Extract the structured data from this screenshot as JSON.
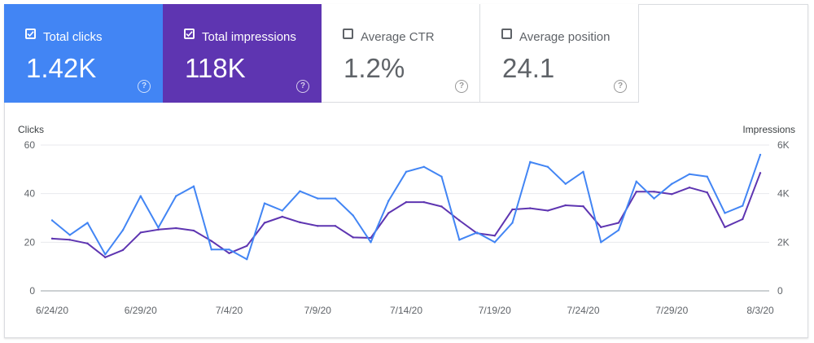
{
  "metrics": [
    {
      "label": "Total clicks",
      "value": "1.42K",
      "checked": true,
      "color": "#4285f4",
      "icon": "help-icon"
    },
    {
      "label": "Total impressions",
      "value": "118K",
      "checked": true,
      "color": "#5e35b1",
      "icon": "help-icon"
    },
    {
      "label": "Average CTR",
      "value": "1.2%",
      "checked": false,
      "icon": "help-icon"
    },
    {
      "label": "Average position",
      "value": "24.1",
      "checked": false,
      "icon": "help-icon"
    }
  ],
  "help_glyph": "?",
  "chart_data": {
    "type": "line",
    "categories": [
      "6/24/20",
      "6/25/20",
      "6/26/20",
      "6/27/20",
      "6/28/20",
      "6/29/20",
      "6/30/20",
      "7/1/20",
      "7/2/20",
      "7/3/20",
      "7/4/20",
      "7/5/20",
      "7/6/20",
      "7/7/20",
      "7/8/20",
      "7/9/20",
      "7/10/20",
      "7/11/20",
      "7/12/20",
      "7/13/20",
      "7/14/20",
      "7/15/20",
      "7/16/20",
      "7/17/20",
      "7/18/20",
      "7/19/20",
      "7/20/20",
      "7/21/20",
      "7/22/20",
      "7/23/20",
      "7/24/20",
      "7/25/20",
      "7/26/20",
      "7/27/20",
      "7/28/20",
      "7/29/20",
      "7/30/20",
      "7/31/20",
      "8/1/20",
      "8/2/20",
      "8/3/20"
    ],
    "x_tick_labels": [
      "6/24/20",
      "6/29/20",
      "7/4/20",
      "7/9/20",
      "7/14/20",
      "7/19/20",
      "7/24/20",
      "7/29/20",
      "8/3/20"
    ],
    "left_axis": {
      "title": "Clicks",
      "ticks": [
        "0",
        "20",
        "40",
        "60"
      ],
      "range": [
        0,
        60
      ]
    },
    "right_axis": {
      "title": "Impressions",
      "ticks": [
        "0",
        "2K",
        "4K",
        "6K"
      ],
      "range": [
        0,
        6000
      ]
    },
    "series": [
      {
        "name": "Clicks",
        "axis": "left",
        "color": "#4285f4",
        "values": [
          29,
          23,
          28,
          15,
          25,
          39,
          26,
          39,
          43,
          17,
          17,
          13,
          36,
          33,
          41,
          38,
          38,
          31,
          20,
          37,
          49,
          51,
          47,
          21,
          24,
          20,
          28,
          53,
          51,
          44,
          49,
          20,
          25,
          45,
          38,
          44,
          48,
          47,
          32,
          35,
          56
        ]
      },
      {
        "name": "Impressions",
        "axis": "right",
        "color": "#5e35b1",
        "values": [
          2150,
          2100,
          1950,
          1380,
          1680,
          2400,
          2520,
          2580,
          2480,
          2050,
          1550,
          1850,
          2800,
          3050,
          2820,
          2670,
          2670,
          2200,
          2180,
          3200,
          3650,
          3650,
          3470,
          2900,
          2370,
          2270,
          3350,
          3400,
          3300,
          3520,
          3480,
          2620,
          2800,
          4080,
          4080,
          3980,
          4250,
          4050,
          2620,
          2950,
          4850
        ]
      }
    ],
    "grid": true
  }
}
